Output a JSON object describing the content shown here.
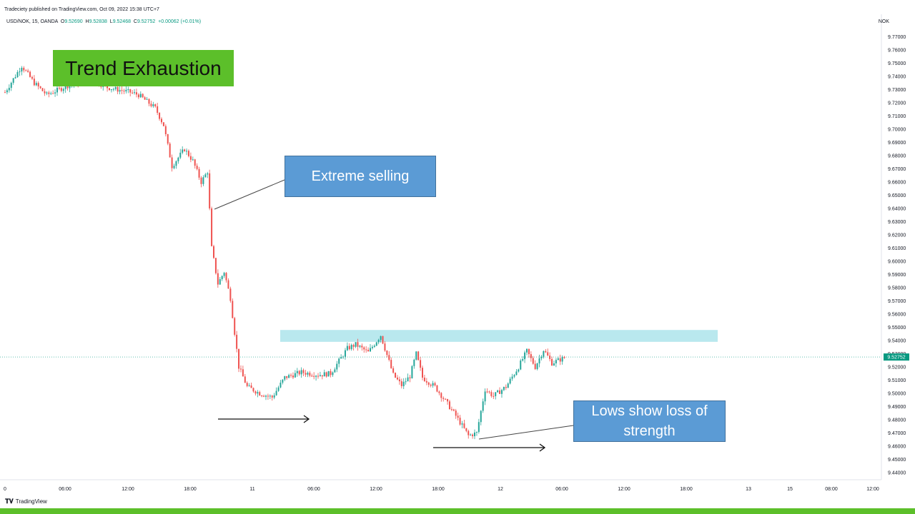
{
  "header": {
    "published": "Tradeciety published on TradingView.com, Oct 09, 2022 15:38 UTC+7",
    "symbol_line": "USD/NOK, 15, OANDA",
    "ohlc": [
      {
        "key": "O",
        "value": "9.52690"
      },
      {
        "key": "H",
        "value": "9.52838"
      },
      {
        "key": "L",
        "value": "9.52468"
      },
      {
        "key": "C",
        "value": "9.52752"
      }
    ],
    "change": "+0.00062 (+0.01%)",
    "currency": "NOK"
  },
  "annotations": {
    "title": "Trend Exhaustion",
    "extreme_selling": "Extreme selling",
    "lows_line1": "Lows show loss of",
    "lows_line2": "strength"
  },
  "brand": {
    "name": "TradingView",
    "logo": "tv-logo-icon"
  },
  "colors": {
    "up": "#26a69a",
    "down": "#ef5350",
    "title_box": "#5cbf2a",
    "callout_box": "#5b9bd5",
    "resistance_zone": "#b9e8ee",
    "footer": "#5cbf2a",
    "price_tag": "#089981"
  },
  "chart_data": {
    "type": "candlestick",
    "title": "",
    "xlabel": "",
    "ylabel": "",
    "ylim": [
      9.435,
      9.78
    ],
    "y_ticks": [
      "9.77000",
      "9.76000",
      "9.75000",
      "9.74000",
      "9.73000",
      "9.72000",
      "9.71000",
      "9.70000",
      "9.69000",
      "9.68000",
      "9.67000",
      "9.66000",
      "9.65000",
      "9.64000",
      "9.63000",
      "9.62000",
      "9.61000",
      "9.60000",
      "9.59000",
      "9.58000",
      "9.57000",
      "9.56000",
      "9.55000",
      "9.54000",
      "9.53000",
      "9.52000",
      "9.51000",
      "9.50000",
      "9.49000",
      "9.48000",
      "9.47000",
      "9.46000",
      "9.45000",
      "9.44000"
    ],
    "x_ticks": [
      "0",
      "06:00",
      "12:00",
      "18:00",
      "11",
      "06:00",
      "12:00",
      "18:00",
      "12",
      "06:00",
      "12:00",
      "18:00",
      "13",
      "15",
      "08:00",
      "12:00"
    ],
    "last_price": "9.52752",
    "resistance_zone": [
      9.539,
      9.548
    ],
    "waypoints": [
      [
        0,
        9.728
      ],
      [
        8,
        9.748
      ],
      [
        14,
        9.735
      ],
      [
        20,
        9.726
      ],
      [
        30,
        9.733
      ],
      [
        42,
        9.738
      ],
      [
        48,
        9.732
      ],
      [
        60,
        9.728
      ],
      [
        64,
        9.726
      ],
      [
        72,
        9.716
      ],
      [
        76,
        9.703
      ],
      [
        80,
        9.672
      ],
      [
        86,
        9.685
      ],
      [
        90,
        9.676
      ],
      [
        94,
        9.66
      ],
      [
        97,
        9.668
      ],
      [
        99,
        9.61
      ],
      [
        102,
        9.583
      ],
      [
        105,
        9.592
      ],
      [
        108,
        9.572
      ],
      [
        112,
        9.52
      ],
      [
        116,
        9.505
      ],
      [
        122,
        9.5
      ],
      [
        128,
        9.497
      ],
      [
        134,
        9.512
      ],
      [
        142,
        9.516
      ],
      [
        150,
        9.514
      ],
      [
        156,
        9.515
      ],
      [
        164,
        9.534
      ],
      [
        168,
        9.537
      ],
      [
        174,
        9.531
      ],
      [
        180,
        9.544
      ],
      [
        186,
        9.514
      ],
      [
        190,
        9.506
      ],
      [
        194,
        9.513
      ],
      [
        197,
        9.53
      ],
      [
        200,
        9.512
      ],
      [
        206,
        9.505
      ],
      [
        212,
        9.492
      ],
      [
        216,
        9.483
      ],
      [
        222,
        9.468
      ],
      [
        226,
        9.47
      ],
      [
        230,
        9.503
      ],
      [
        234,
        9.498
      ],
      [
        240,
        9.505
      ],
      [
        246,
        9.52
      ],
      [
        250,
        9.532
      ],
      [
        254,
        9.52
      ],
      [
        258,
        9.533
      ],
      [
        262,
        9.523
      ],
      [
        268,
        9.527
      ]
    ]
  }
}
